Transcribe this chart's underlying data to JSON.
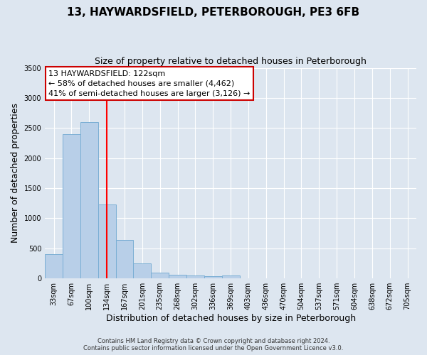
{
  "title": "13, HAYWARDSFIELD, PETERBOROUGH, PE3 6FB",
  "subtitle": "Size of property relative to detached houses in Peterborough",
  "xlabel": "Distribution of detached houses by size in Peterborough",
  "ylabel": "Number of detached properties",
  "footnote1": "Contains HM Land Registry data © Crown copyright and database right 2024.",
  "footnote2": "Contains public sector information licensed under the Open Government Licence v3.0.",
  "bin_labels": [
    "33sqm",
    "67sqm",
    "100sqm",
    "134sqm",
    "167sqm",
    "201sqm",
    "235sqm",
    "268sqm",
    "302sqm",
    "336sqm",
    "369sqm",
    "403sqm",
    "436sqm",
    "470sqm",
    "504sqm",
    "537sqm",
    "571sqm",
    "604sqm",
    "638sqm",
    "672sqm",
    "705sqm"
  ],
  "bar_values": [
    400,
    2400,
    2600,
    1230,
    640,
    250,
    100,
    60,
    55,
    35,
    55,
    0,
    0,
    0,
    0,
    0,
    0,
    0,
    0,
    0,
    0
  ],
  "bar_color": "#b8cfe8",
  "bar_edgecolor": "#7aaed4",
  "red_line_x": 3.5,
  "ylim": [
    0,
    3500
  ],
  "yticks": [
    0,
    500,
    1000,
    1500,
    2000,
    2500,
    3000,
    3500
  ],
  "annotation_text": "13 HAYWARDSFIELD: 122sqm\n← 58% of detached houses are smaller (4,462)\n41% of semi-detached houses are larger (3,126) →",
  "annotation_box_color": "#ffffff",
  "annotation_box_edgecolor": "#cc0000",
  "background_color": "#dde6f0",
  "grid_color": "#ffffff",
  "title_fontsize": 11,
  "subtitle_fontsize": 9,
  "ylabel_fontsize": 9,
  "xlabel_fontsize": 9,
  "tick_fontsize": 7,
  "annot_fontsize": 8,
  "footnote_fontsize": 6
}
